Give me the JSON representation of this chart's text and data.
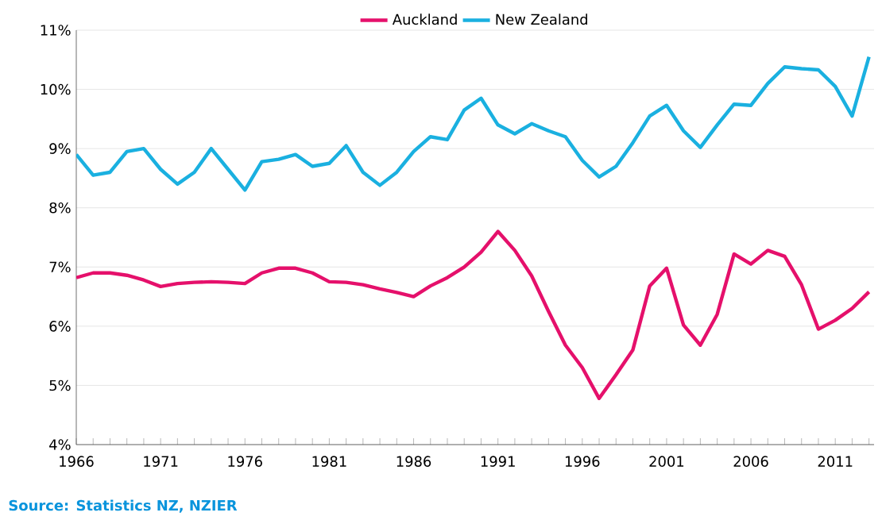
{
  "chart_data": {
    "type": "line",
    "x": [
      1966,
      1967,
      1968,
      1969,
      1970,
      1971,
      1972,
      1973,
      1974,
      1975,
      1976,
      1977,
      1978,
      1979,
      1980,
      1981,
      1982,
      1983,
      1984,
      1985,
      1986,
      1987,
      1988,
      1989,
      1990,
      1991,
      1992,
      1993,
      1994,
      1995,
      1996,
      1997,
      1998,
      1999,
      2000,
      2001,
      2002,
      2003,
      2004,
      2005,
      2006,
      2007,
      2008,
      2009,
      2010,
      2011,
      2012,
      2013
    ],
    "series": [
      {
        "name": "Auckland",
        "color": "#e5106b",
        "values": [
          6.82,
          6.9,
          6.9,
          6.86,
          6.78,
          6.67,
          6.72,
          6.74,
          6.75,
          6.74,
          6.72,
          6.9,
          6.98,
          6.98,
          6.9,
          6.75,
          6.74,
          6.7,
          6.63,
          6.57,
          6.5,
          6.68,
          6.82,
          7.0,
          7.25,
          7.6,
          7.28,
          6.85,
          6.25,
          5.68,
          5.3,
          4.78,
          5.18,
          5.6,
          6.68,
          6.98,
          6.02,
          5.68,
          6.2,
          7.22,
          7.05,
          7.28,
          7.18,
          6.7,
          5.95,
          6.1,
          6.3,
          6.58
        ]
      },
      {
        "name": "New Zealand",
        "color": "#1ab0e0",
        "values": [
          8.9,
          8.55,
          8.6,
          8.95,
          9.0,
          8.65,
          8.4,
          8.6,
          9.0,
          8.65,
          8.3,
          8.78,
          8.82,
          8.9,
          8.7,
          8.75,
          9.05,
          8.6,
          8.38,
          8.6,
          8.95,
          9.2,
          9.15,
          9.65,
          9.85,
          9.4,
          9.25,
          9.42,
          9.3,
          9.2,
          8.8,
          8.52,
          8.7,
          9.1,
          9.55,
          9.73,
          9.3,
          9.02,
          9.4,
          9.75,
          9.73,
          10.1,
          10.38,
          10.35,
          10.33,
          10.05,
          9.55,
          10.55
        ]
      }
    ],
    "xlim": [
      1966,
      2013.3
    ],
    "xticks": [
      1966,
      {
        "value": 1967,
        "label": null
      },
      {
        "value": 1968,
        "label": null
      },
      {
        "value": 1969,
        "label": null
      },
      {
        "value": 1970,
        "label": null
      },
      1971,
      {
        "value": 1972,
        "label": null
      },
      {
        "value": 1973,
        "label": null
      },
      {
        "value": 1974,
        "label": null
      },
      {
        "value": 1975,
        "label": null
      },
      1976,
      {
        "value": 1977,
        "label": null
      },
      {
        "value": 1978,
        "label": null
      },
      {
        "value": 1979,
        "label": null
      },
      {
        "value": 1980,
        "label": null
      },
      1981,
      {
        "value": 1982,
        "label": null
      },
      {
        "value": 1983,
        "label": null
      },
      {
        "value": 1984,
        "label": null
      },
      {
        "value": 1985,
        "label": null
      },
      1986,
      {
        "value": 1987,
        "label": null
      },
      {
        "value": 1988,
        "label": null
      },
      {
        "value": 1989,
        "label": null
      },
      {
        "value": 1990,
        "label": null
      },
      1991,
      {
        "value": 1992,
        "label": null
      },
      {
        "value": 1993,
        "label": null
      },
      {
        "value": 1994,
        "label": null
      },
      {
        "value": 1995,
        "label": null
      },
      1996,
      {
        "value": 1997,
        "label": null
      },
      {
        "value": 1998,
        "label": null
      },
      {
        "value": 1999,
        "label": null
      },
      {
        "value": 2000,
        "label": null
      },
      2001,
      {
        "value": 2002,
        "label": null
      },
      {
        "value": 2003,
        "label": null
      },
      {
        "value": 2004,
        "label": null
      },
      {
        "value": 2005,
        "label": null
      },
      2006,
      {
        "value": 2007,
        "label": null
      },
      {
        "value": 2008,
        "label": null
      },
      {
        "value": 2009,
        "label": null
      },
      {
        "value": 2010,
        "label": null
      },
      2011,
      {
        "value": 2012,
        "label": null
      },
      {
        "value": 2013,
        "label": null
      }
    ],
    "ylim": [
      4,
      11
    ],
    "yticks": [
      {
        "value": 4,
        "label": "4%"
      },
      {
        "value": 5,
        "label": "5%"
      },
      {
        "value": 6,
        "label": "6%"
      },
      {
        "value": 7,
        "label": "7%"
      },
      {
        "value": 8,
        "label": "8%"
      },
      {
        "value": 9,
        "label": "9%"
      },
      {
        "value": 10,
        "label": "10%"
      },
      {
        "value": 11,
        "label": "11%"
      }
    ],
    "grid": "y",
    "legend": "top",
    "marker": "none",
    "line_style": "solid",
    "annotations": [
      "Source: Statistics NZ, NZIER"
    ]
  }
}
